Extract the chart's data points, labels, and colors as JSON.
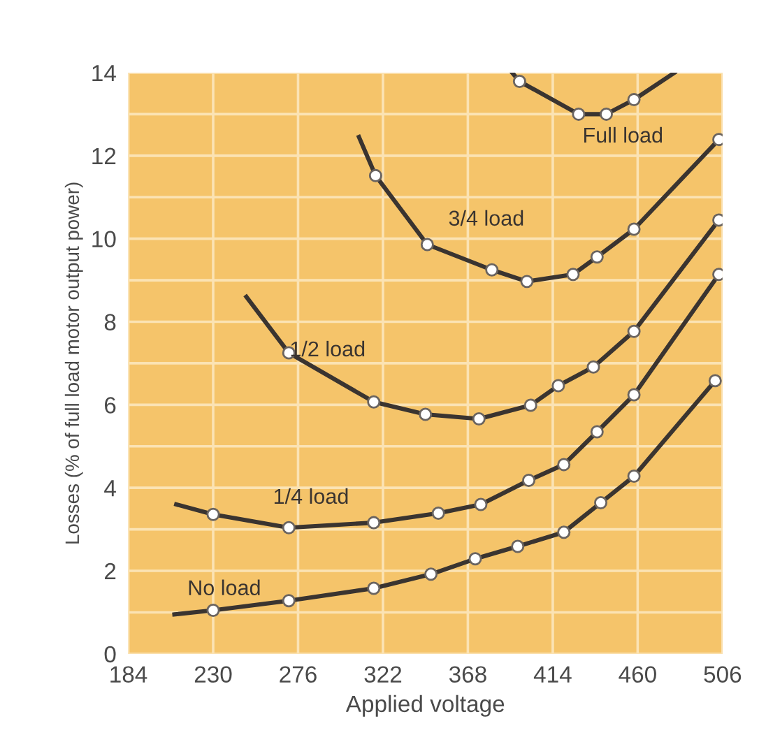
{
  "chart_data": {
    "type": "line",
    "xlabel": "Applied voltage",
    "ylabel": "Losses (% of full load motor output power)",
    "xlim": [
      184,
      506
    ],
    "xticks": [
      184,
      230,
      276,
      322,
      368,
      414,
      460,
      506
    ],
    "ylim": [
      0,
      14
    ],
    "yticks": [
      0,
      {
        "value": 1,
        "label": null
      },
      2,
      {
        "value": 3,
        "label": null
      },
      4,
      {
        "value": 5,
        "label": null
      },
      6,
      {
        "value": 7,
        "label": null
      },
      8,
      {
        "value": 9,
        "label": null
      },
      10,
      {
        "value": 11,
        "label": null
      },
      12,
      {
        "value": 13,
        "label": null
      },
      14
    ],
    "grid": true,
    "legend": false,
    "line_style": "solid",
    "series": [
      {
        "name": "No load",
        "color": "#3a3430",
        "marker": "none",
        "x": [
          209,
          230,
          271,
          317,
          348,
          372,
          395,
          420,
          440,
          458,
          502
        ],
        "values": [
          0.95,
          1.05,
          1.28,
          1.58,
          1.92,
          2.29,
          2.59,
          2.93,
          3.64,
          4.28,
          6.58
        ]
      },
      {
        "type": "scatter",
        "color": "#ffffff",
        "marker": "circle",
        "x": [
          230,
          271,
          317,
          348,
          372,
          395,
          420,
          440,
          458,
          502
        ],
        "values": [
          1.05,
          1.28,
          1.58,
          1.92,
          2.29,
          2.59,
          2.93,
          3.64,
          4.28,
          6.58
        ]
      },
      {
        "name": "1/4 load",
        "color": "#3a3430",
        "marker": "none",
        "x": [
          210,
          230,
          271,
          317,
          352,
          375,
          401,
          420,
          438,
          458,
          504
        ],
        "values": [
          3.6,
          3.36,
          3.04,
          3.16,
          3.39,
          3.6,
          4.18,
          4.56,
          5.35,
          6.24,
          9.14
        ]
      },
      {
        "type": "scatter",
        "color": "#ffffff",
        "marker": "circle",
        "x": [
          230,
          271,
          317,
          352,
          375,
          401,
          420,
          438,
          458,
          504
        ],
        "values": [
          3.36,
          3.04,
          3.16,
          3.39,
          3.6,
          4.18,
          4.56,
          5.35,
          6.24,
          9.14
        ]
      },
      {
        "name": "1/2 load",
        "color": "#3a3430",
        "marker": "none",
        "x": [
          248,
          271,
          317,
          345,
          374,
          402,
          417,
          436,
          458,
          504
        ],
        "values": [
          8.6,
          7.25,
          6.07,
          5.77,
          5.66,
          5.99,
          6.46,
          6.91,
          7.77,
          10.45
        ]
      },
      {
        "type": "scatter",
        "color": "#ffffff",
        "marker": "circle",
        "x": [
          271,
          317,
          345,
          374,
          402,
          417,
          436,
          458,
          504
        ],
        "values": [
          7.25,
          6.07,
          5.77,
          5.66,
          5.99,
          6.46,
          6.91,
          7.77,
          10.45
        ]
      },
      {
        "name": "3/4 load",
        "color": "#3a3430",
        "marker": "none",
        "x": [
          309,
          318,
          346,
          381,
          400,
          425,
          438,
          458,
          504
        ],
        "values": [
          12.45,
          11.52,
          9.86,
          9.25,
          8.97,
          9.14,
          9.56,
          10.23,
          12.39
        ]
      },
      {
        "type": "scatter",
        "color": "#ffffff",
        "marker": "circle",
        "x": [
          318,
          346,
          381,
          400,
          425,
          438,
          458,
          504
        ],
        "values": [
          11.52,
          9.86,
          9.25,
          8.97,
          9.14,
          9.56,
          10.23,
          12.39
        ]
      },
      {
        "name": "Full load",
        "color": "#3a3430",
        "marker": "none",
        "x": [
          392,
          396,
          428,
          443,
          458,
          480
        ],
        "values": [
          14,
          13.79,
          13.0,
          13.0,
          13.35,
          14
        ]
      },
      {
        "type": "scatter",
        "color": "#ffffff",
        "marker": "circle",
        "x": [
          396,
          428,
          443,
          458
        ],
        "values": [
          13.79,
          13.0,
          13.0,
          13.35
        ]
      }
    ]
  }
}
